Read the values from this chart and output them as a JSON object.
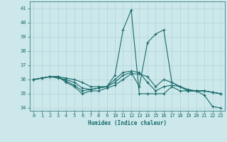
{
  "xlabel": "Humidex (Indice chaleur)",
  "xlim": [
    -0.5,
    23.5
  ],
  "ylim": [
    33.8,
    41.5
  ],
  "yticks": [
    34,
    35,
    36,
    37,
    38,
    39,
    40,
    41
  ],
  "xticks": [
    0,
    1,
    2,
    3,
    4,
    5,
    6,
    7,
    8,
    9,
    10,
    11,
    12,
    13,
    14,
    15,
    16,
    17,
    18,
    19,
    20,
    21,
    22,
    23
  ],
  "bg_color": "#cde8eb",
  "line_color": "#1a6b6b",
  "grid_color": "#b0d5d8",
  "series": [
    [
      36.0,
      36.1,
      36.2,
      36.2,
      36.1,
      36.0,
      35.8,
      35.5,
      35.5,
      35.5,
      36.3,
      39.5,
      40.9,
      35.0,
      35.0,
      35.0,
      35.0,
      35.5,
      35.2,
      35.2,
      35.2,
      34.9,
      34.1,
      34.0
    ],
    [
      36.0,
      36.1,
      36.2,
      36.2,
      35.8,
      35.5,
      35.0,
      35.2,
      35.2,
      35.4,
      35.6,
      36.0,
      36.4,
      36.4,
      36.2,
      35.5,
      36.0,
      35.8,
      35.5,
      35.2,
      35.2,
      35.2,
      35.1,
      35.0
    ],
    [
      36.0,
      36.1,
      36.2,
      36.1,
      36.0,
      35.8,
      35.4,
      35.3,
      35.4,
      35.5,
      36.0,
      36.5,
      36.6,
      36.5,
      35.8,
      35.2,
      35.5,
      35.6,
      35.5,
      35.3,
      35.2,
      35.2,
      35.1,
      35.0
    ],
    [
      36.0,
      36.1,
      36.2,
      36.2,
      35.9,
      35.6,
      35.2,
      35.3,
      35.4,
      35.5,
      35.8,
      36.3,
      36.5,
      35.5,
      38.6,
      39.2,
      39.5,
      35.8,
      35.5,
      35.2,
      35.2,
      35.2,
      35.1,
      35.0
    ]
  ]
}
